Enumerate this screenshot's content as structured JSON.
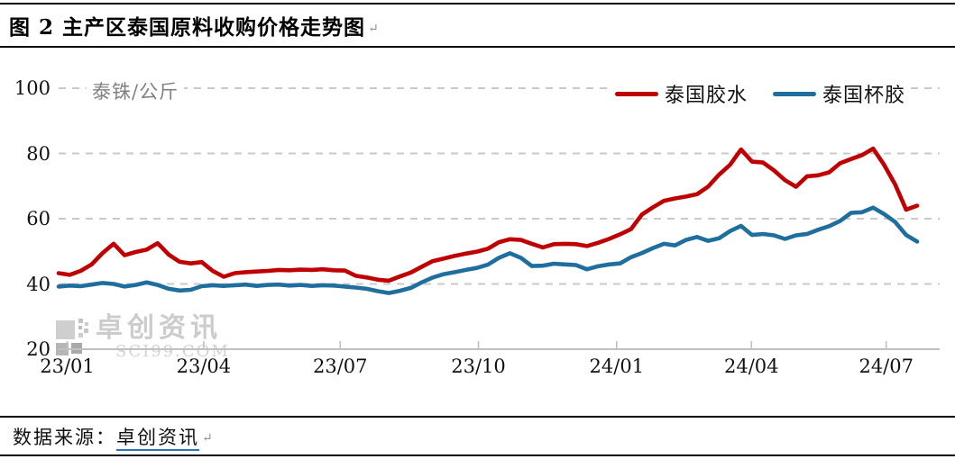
{
  "title": "图 2 主产区泰国原料收购价格走势图",
  "paragraph_mark": "↵",
  "watermark": {
    "name": "卓创资讯",
    "site": "SCI99.COM"
  },
  "footer": {
    "label": "数据来源：",
    "link_text": "卓创资讯",
    "paragraph_mark": "↵"
  },
  "colors": {
    "latex_red": "#c00000",
    "cup_blue": "#1f6f9e",
    "grid": "#c9c9c9",
    "axis": "#c0c0c0",
    "text": "#111111",
    "muted": "#808080",
    "watermark": "#cccccc",
    "link_underline": "#2e75b6"
  },
  "chart_data": {
    "type": "line",
    "unit_label": "泰铢/公斤",
    "ylim": [
      20,
      100
    ],
    "y_ticks": [
      20,
      40,
      60,
      80,
      100
    ],
    "grid": "horizontal-dashed",
    "legend_position": "top-right",
    "x_ticks": [
      {
        "label": "23/01",
        "pos": 0.01
      },
      {
        "label": "23/04",
        "pos": 0.169
      },
      {
        "label": "23/07",
        "pos": 0.328
      },
      {
        "label": "23/10",
        "pos": 0.489
      },
      {
        "label": "24/01",
        "pos": 0.65
      },
      {
        "label": "24/04",
        "pos": 0.807
      },
      {
        "label": "24/07",
        "pos": 0.964
      }
    ],
    "series": [
      {
        "name": "泰国胶水",
        "color": "#c00000",
        "values": [
          43.3,
          42.8,
          44.0,
          46.0,
          49.5,
          52.3,
          48.8,
          49.8,
          50.5,
          52.5,
          49.0,
          46.8,
          46.3,
          46.7,
          44.0,
          42.2,
          43.3,
          43.6,
          43.8,
          44.0,
          44.3,
          44.2,
          44.4,
          44.3,
          44.5,
          44.2,
          44.1,
          42.5,
          42.0,
          41.3,
          41.0,
          42.3,
          43.5,
          45.3,
          47.0,
          47.8,
          48.6,
          49.3,
          49.9,
          50.8,
          52.8,
          53.7,
          53.5,
          52.3,
          51.2,
          52.2,
          52.3,
          52.2,
          51.6,
          52.6,
          53.8,
          55.2,
          56.8,
          61.3,
          63.5,
          65.5,
          66.2,
          66.8,
          67.5,
          69.8,
          73.5,
          76.5,
          81.2,
          77.5,
          77.2,
          74.8,
          71.8,
          69.8,
          73.0,
          73.3,
          74.2,
          77.0,
          78.3,
          79.5,
          81.5,
          76.5,
          70.5,
          62.8,
          64.0
        ]
      },
      {
        "name": "泰国杯胶",
        "color": "#1f6f9e",
        "values": [
          39.2,
          39.5,
          39.3,
          39.8,
          40.3,
          40.0,
          39.2,
          39.7,
          40.5,
          39.7,
          38.5,
          38.0,
          38.2,
          39.3,
          39.6,
          39.4,
          39.6,
          39.8,
          39.4,
          39.7,
          39.8,
          39.5,
          39.7,
          39.4,
          39.6,
          39.5,
          39.2,
          38.9,
          38.5,
          37.8,
          37.2,
          37.9,
          38.8,
          40.5,
          42.0,
          43.0,
          43.6,
          44.3,
          44.9,
          45.9,
          48.0,
          49.4,
          48.0,
          45.5,
          45.6,
          46.2,
          46.0,
          45.8,
          44.5,
          45.4,
          46.0,
          46.3,
          48.2,
          49.5,
          51.0,
          52.3,
          51.8,
          53.5,
          54.4,
          53.2,
          54.0,
          56.2,
          57.8,
          55.0,
          55.3,
          54.9,
          53.8,
          54.9,
          55.3,
          56.6,
          57.7,
          59.3,
          61.8,
          62.0,
          63.4,
          61.4,
          59.0,
          55.0,
          53.0
        ]
      }
    ]
  }
}
